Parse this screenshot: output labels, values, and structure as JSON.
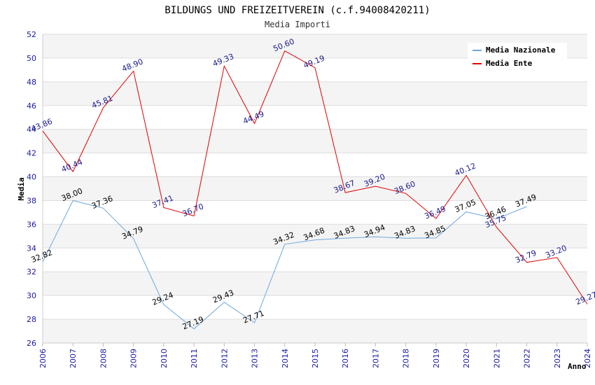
{
  "chart_data": {
    "type": "line",
    "title": "BILDUNGS UND FREIZEITVEREIN (c.f.94008420211)",
    "subtitle": "Media Importi",
    "xlabel": "Anno",
    "ylabel": "Media",
    "ylim": [
      26,
      52
    ],
    "ytick_step": 2,
    "grid": true,
    "legend_position": "top-right",
    "x": [
      "2006",
      "2007",
      "2008",
      "2009",
      "2010",
      "2011",
      "2012",
      "2013",
      "2014",
      "2015",
      "2016",
      "2017",
      "2018",
      "2019",
      "2020",
      "2021",
      "2022",
      "2023",
      "2024"
    ],
    "series": [
      {
        "name": "Media Nazionale",
        "color": "#6fa8dc",
        "values": [
          32.82,
          38.0,
          37.36,
          34.79,
          29.24,
          27.19,
          29.43,
          27.71,
          34.32,
          34.68,
          34.83,
          34.94,
          34.83,
          34.85,
          37.05,
          36.46,
          37.49,
          null,
          null
        ],
        "labels": [
          "32.82",
          "38.00",
          "37.36",
          "34.79",
          "29.24",
          "27.19",
          "29.43",
          "27.71",
          "34.32",
          "34.68",
          "34.83",
          "34.94",
          "34.83",
          "34.85",
          "37.05",
          "36.46",
          "37.49",
          null,
          null
        ]
      },
      {
        "name": "Media Ente",
        "color": "#e00000",
        "values": [
          43.86,
          40.44,
          45.81,
          48.9,
          37.41,
          36.7,
          49.33,
          44.49,
          50.6,
          49.19,
          38.67,
          39.2,
          38.6,
          36.49,
          40.12,
          35.75,
          32.79,
          33.2,
          29.27
        ],
        "labels": [
          "43.86",
          "40.44",
          "45.81",
          "48.90",
          "37.41",
          "36.70",
          "49.33",
          "44.49",
          "50.60",
          "49.19",
          "38.67",
          "39.20",
          "38.60",
          "36.49",
          "40.12",
          "35.75",
          "32.79",
          "33.20",
          "29.27"
        ]
      }
    ]
  }
}
